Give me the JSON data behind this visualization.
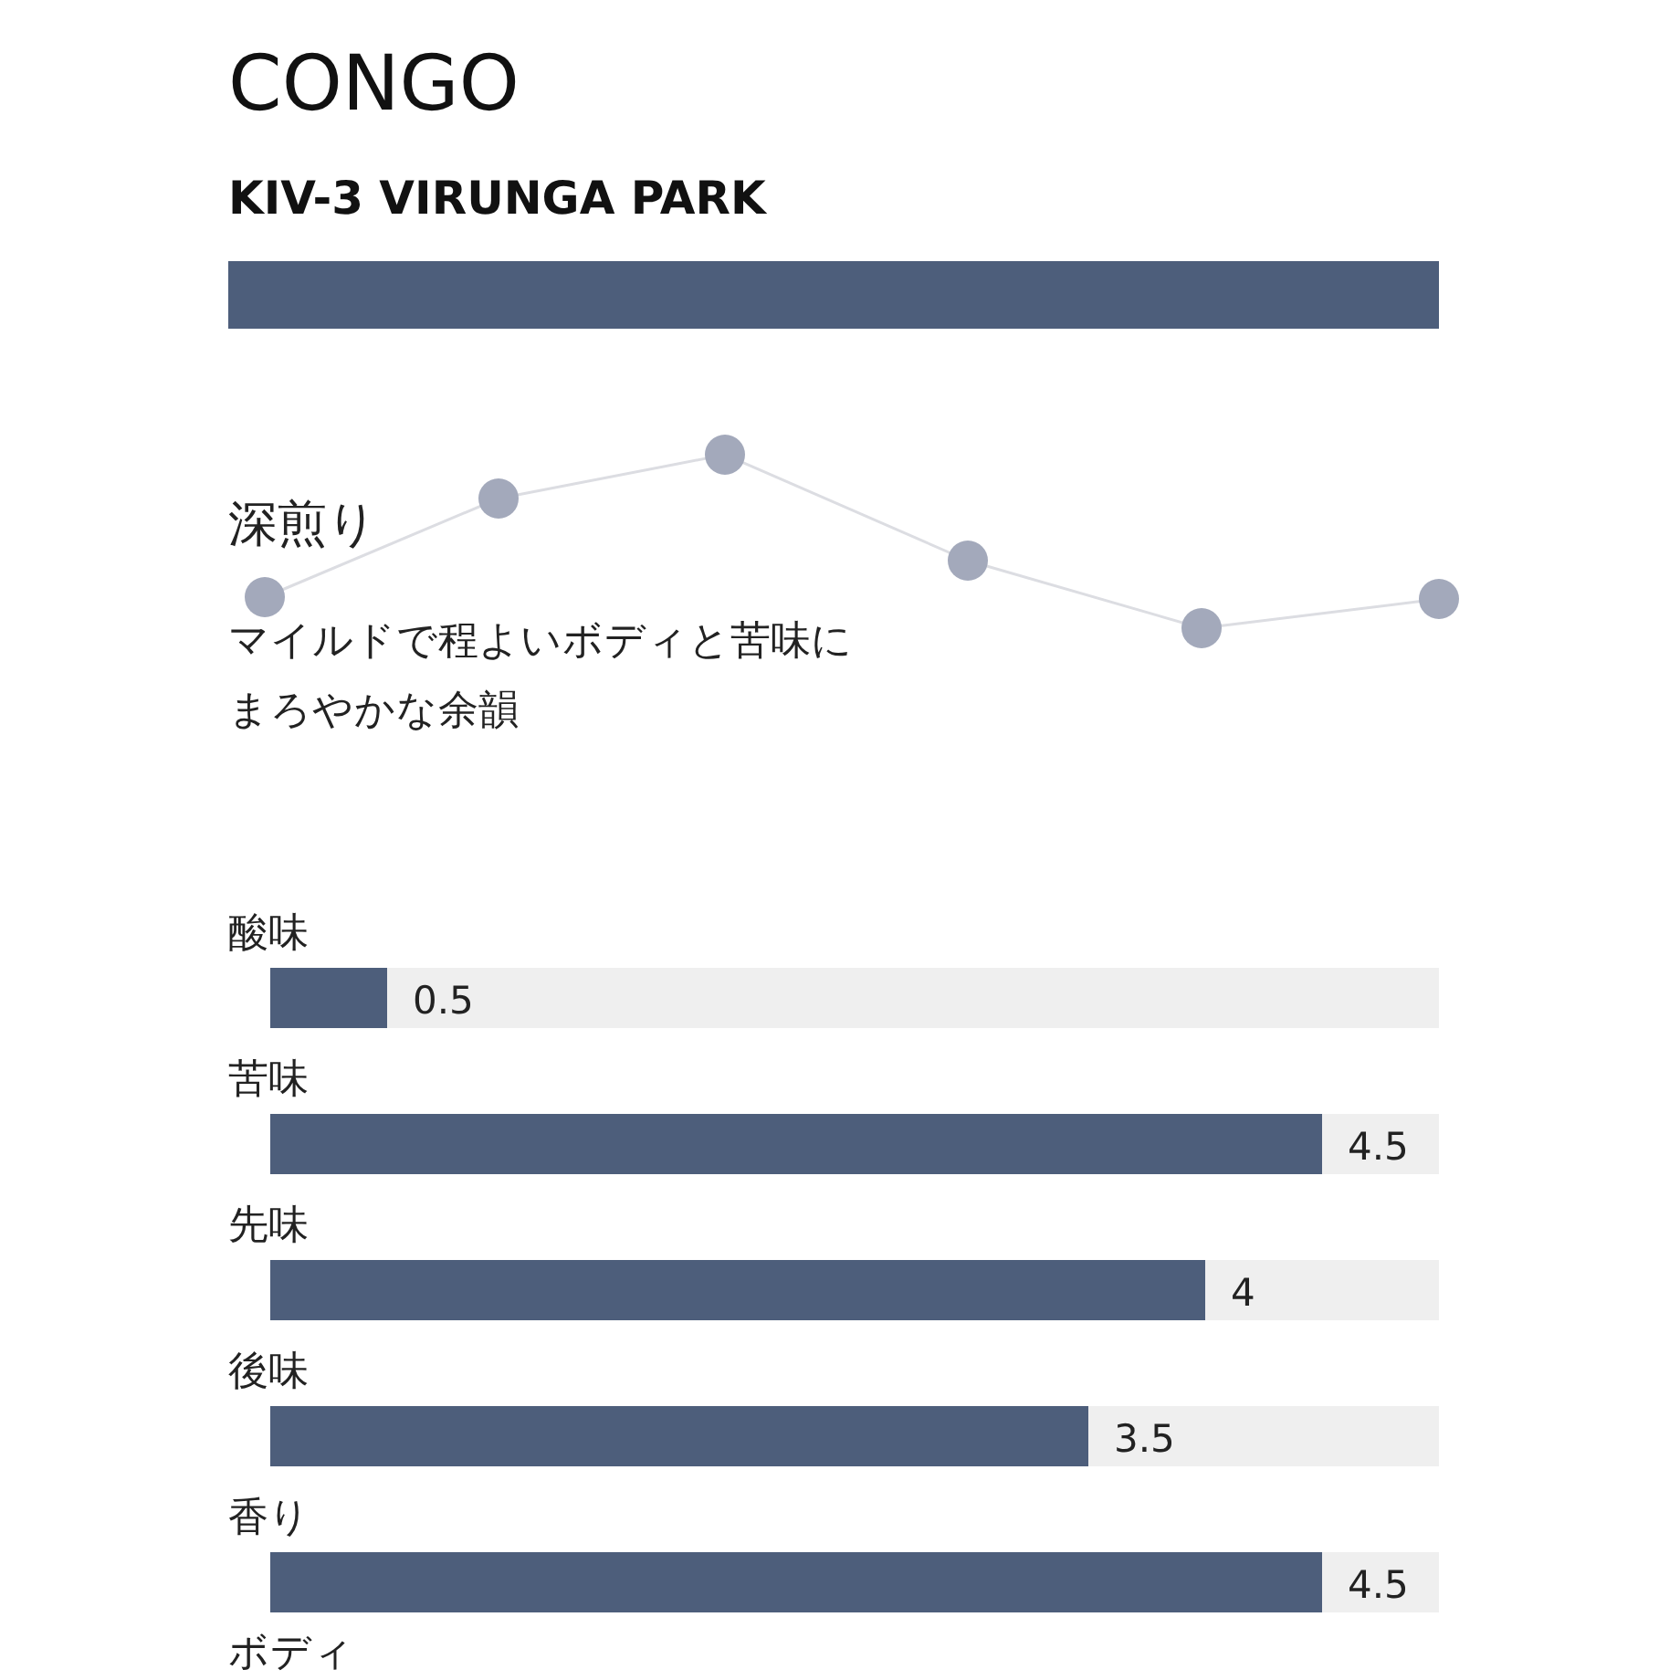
{
  "chart_data": [
    {
      "type": "other",
      "title": "CONGO",
      "subtitle": "KIV-3 VIRUNGA PARK",
      "annotations": [
        "深煎り",
        "マイルドで程よいボディと苦味にまろやかな余韻"
      ]
    },
    {
      "type": "bar",
      "orientation": "horizontal",
      "data_labels": true,
      "xlim": [
        0,
        5
      ],
      "tick_labels": false,
      "categories": [
        "酸味",
        "苦味",
        "先味",
        "後味",
        "香り",
        "ボディ"
      ],
      "series": [
        {
          "color": "#4d5e7b",
          "values": [
            0.5,
            4.5,
            4,
            3.5,
            4.5,
            null
          ]
        }
      ]
    }
  ]
}
